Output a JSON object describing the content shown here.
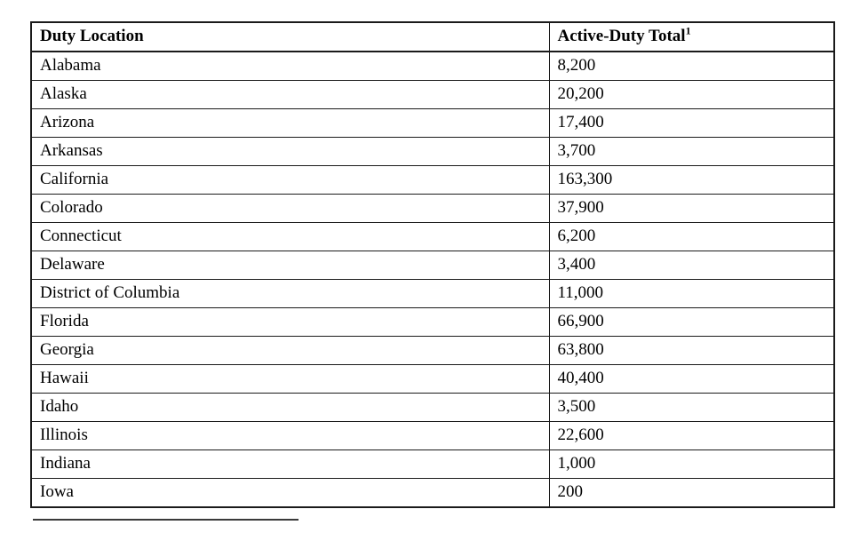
{
  "table": {
    "header": {
      "col1_label": "Duty Location",
      "col2_label": "Active-Duty Total",
      "col2_superscript": "1"
    },
    "rows": [
      {
        "location": "Alabama",
        "total": "8,200"
      },
      {
        "location": "Alaska",
        "total": "20,200"
      },
      {
        "location": "Arizona",
        "total": "17,400"
      },
      {
        "location": "Arkansas",
        "total": "3,700"
      },
      {
        "location": "California",
        "total": "163,300"
      },
      {
        "location": "Colorado",
        "total": "37,900"
      },
      {
        "location": "Connecticut",
        "total": "6,200"
      },
      {
        "location": "Delaware",
        "total": "3,400"
      },
      {
        "location": "District of Columbia",
        "total": "11,000"
      },
      {
        "location": "Florida",
        "total": "66,900"
      },
      {
        "location": "Georgia",
        "total": "63,800"
      },
      {
        "location": "Hawaii",
        "total": "40,400"
      },
      {
        "location": "Idaho",
        "total": "3,500"
      },
      {
        "location": "Illinois",
        "total": "22,600"
      },
      {
        "location": "Indiana",
        "total": "1,000"
      },
      {
        "location": "Iowa",
        "total": "200"
      }
    ]
  },
  "colors": {
    "text": "#000000",
    "border": "#1a1a1a",
    "footnote_rule": "#3a3a3a",
    "background": "#ffffff"
  }
}
